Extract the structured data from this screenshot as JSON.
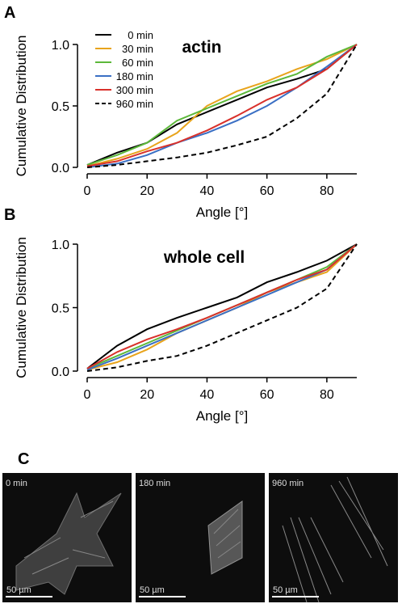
{
  "chart_data": [
    {
      "type": "line",
      "panel_label": "A",
      "annotation": "actin",
      "xlabel": "Angle [°]",
      "ylabel": "Cumulative Distribution",
      "x": [
        0,
        10,
        20,
        30,
        40,
        50,
        60,
        70,
        80,
        90
      ],
      "xlim": [
        0,
        90
      ],
      "xticks": [
        0,
        20,
        40,
        60,
        80
      ],
      "ylim": [
        0,
        1
      ],
      "yticks": [
        {
          "value": 0,
          "label": "0.0"
        },
        {
          "value": 0.5,
          "label": "0.5"
        },
        {
          "value": 1,
          "label": "1.0"
        }
      ],
      "legend": true,
      "legend_position": "upper-left",
      "series": [
        {
          "name": "0 min",
          "color": "#000000",
          "dashed": false,
          "values": [
            0.02,
            0.12,
            0.2,
            0.35,
            0.45,
            0.55,
            0.65,
            0.72,
            0.8,
            1.0
          ]
        },
        {
          "name": "30 min",
          "color": "#e8a41c",
          "dashed": false,
          "values": [
            0.01,
            0.07,
            0.15,
            0.28,
            0.5,
            0.62,
            0.7,
            0.8,
            0.88,
            1.0
          ]
        },
        {
          "name": "60 min",
          "color": "#5cb83a",
          "dashed": false,
          "values": [
            0.02,
            0.1,
            0.2,
            0.38,
            0.48,
            0.58,
            0.68,
            0.76,
            0.9,
            1.0
          ]
        },
        {
          "name": "180 min",
          "color": "#3a6fc4",
          "dashed": false,
          "values": [
            0,
            0.03,
            0.1,
            0.2,
            0.28,
            0.38,
            0.5,
            0.65,
            0.82,
            1.0
          ]
        },
        {
          "name": "300 min",
          "color": "#d9312b",
          "dashed": false,
          "values": [
            0.01,
            0.05,
            0.13,
            0.2,
            0.3,
            0.42,
            0.55,
            0.65,
            0.8,
            1.0
          ]
        },
        {
          "name": "960 min",
          "color": "#000000",
          "dashed": true,
          "values": [
            0,
            0.02,
            0.05,
            0.08,
            0.12,
            0.18,
            0.25,
            0.4,
            0.6,
            1.0
          ]
        }
      ]
    },
    {
      "type": "line",
      "panel_label": "B",
      "annotation": "whole cell",
      "xlabel": "Angle [°]",
      "ylabel": "Cumulative Distribution",
      "x": [
        0,
        10,
        20,
        30,
        40,
        50,
        60,
        70,
        80,
        90
      ],
      "xlim": [
        0,
        90
      ],
      "xticks": [
        0,
        20,
        40,
        60,
        80
      ],
      "ylim": [
        0,
        1
      ],
      "yticks": [
        {
          "value": 0,
          "label": "0.0"
        },
        {
          "value": 0.5,
          "label": "0.5"
        },
        {
          "value": 1,
          "label": "1.0"
        }
      ],
      "legend": false,
      "series": [
        {
          "color": "#000000",
          "dashed": false,
          "values": [
            0.02,
            0.2,
            0.33,
            0.42,
            0.5,
            0.58,
            0.7,
            0.78,
            0.87,
            1.0
          ]
        },
        {
          "color": "#e8a41c",
          "dashed": false,
          "values": [
            0.01,
            0.07,
            0.17,
            0.3,
            0.4,
            0.5,
            0.62,
            0.7,
            0.78,
            1.0
          ]
        },
        {
          "color": "#5cb83a",
          "dashed": false,
          "values": [
            0.02,
            0.12,
            0.22,
            0.32,
            0.42,
            0.52,
            0.62,
            0.72,
            0.82,
            1.0
          ]
        },
        {
          "color": "#3a6fc4",
          "dashed": false,
          "values": [
            0.01,
            0.1,
            0.2,
            0.3,
            0.4,
            0.5,
            0.6,
            0.7,
            0.8,
            1.0
          ]
        },
        {
          "color": "#d9312b",
          "dashed": false,
          "values": [
            0.02,
            0.15,
            0.25,
            0.33,
            0.42,
            0.52,
            0.62,
            0.72,
            0.8,
            1.0
          ]
        },
        {
          "color": "#000000",
          "dashed": true,
          "values": [
            0,
            0.03,
            0.08,
            0.12,
            0.2,
            0.3,
            0.4,
            0.5,
            0.65,
            1.0
          ]
        }
      ]
    }
  ],
  "images": {
    "panel_label": "C",
    "panels": [
      {
        "label": "0 min",
        "scale_bar": "50 µm"
      },
      {
        "label": "180 min",
        "scale_bar": "50 µm"
      },
      {
        "label": "960 min",
        "scale_bar": "50 µm"
      }
    ]
  }
}
